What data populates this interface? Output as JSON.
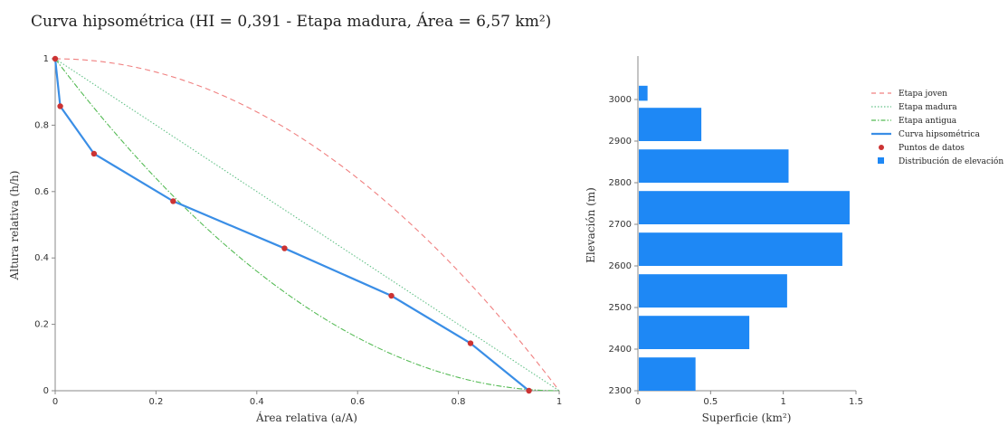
{
  "title": "Curva hipsométrica (HI = 0,391 - Etapa madura, Área = 6,57 km²)",
  "colors": {
    "joven": "#f08080",
    "madura": "#66c28a",
    "antigua": "#55bb55",
    "curva": "#3a8ee6",
    "puntos": "#cc3333",
    "barras": "#1e88f5"
  },
  "chart_data": [
    {
      "type": "line",
      "xlabel": "Área relativa (a/A)",
      "ylabel": "Altura relativa (h/h)",
      "xlim": [
        0,
        1
      ],
      "ylim": [
        0,
        1
      ],
      "xticks": [
        "0",
        "0.2",
        "0.4",
        "0.6",
        "0.8",
        "1"
      ],
      "yticks": [
        "0",
        "0.2",
        "0.4",
        "0.6",
        "0.8",
        "1"
      ],
      "grid": false,
      "series": [
        {
          "name": "Etapa joven",
          "style": "dashed",
          "x": [
            0,
            0.1,
            0.2,
            0.3,
            0.4,
            0.5,
            0.6,
            0.7,
            0.8,
            0.9,
            1
          ],
          "y": [
            1,
            0.99,
            0.96,
            0.91,
            0.84,
            0.75,
            0.64,
            0.51,
            0.36,
            0.19,
            0
          ]
        },
        {
          "name": "Etapa madura",
          "style": "dotted",
          "x": [
            0,
            1
          ],
          "y": [
            1,
            0
          ]
        },
        {
          "name": "Etapa antigua",
          "style": "dashdot",
          "x": [
            0,
            0.1,
            0.2,
            0.3,
            0.4,
            0.5,
            0.6,
            0.7,
            0.8,
            0.9,
            1
          ],
          "y": [
            1,
            0.81,
            0.64,
            0.49,
            0.36,
            0.25,
            0.16,
            0.09,
            0.04,
            0.01,
            0
          ]
        },
        {
          "name": "Curva hipsométrica",
          "style": "solid",
          "x": [
            0,
            0.01,
            0.077,
            0.234,
            0.455,
            0.667,
            0.824,
            0.94
          ],
          "y": [
            1,
            0.857,
            0.714,
            0.571,
            0.429,
            0.286,
            0.143,
            0
          ]
        }
      ],
      "points": {
        "name": "Puntos de datos",
        "x": [
          0,
          0.01,
          0.077,
          0.234,
          0.455,
          0.667,
          0.824,
          0.94
        ],
        "y": [
          1,
          0.857,
          0.714,
          0.571,
          0.429,
          0.286,
          0.143,
          0
        ]
      }
    },
    {
      "type": "bar",
      "orientation": "horizontal",
      "xlabel": "Superficie (km²)",
      "ylabel": "Elevación (m)",
      "xlim": [
        0,
        1.5
      ],
      "ylim": [
        2300,
        3030
      ],
      "xticks": [
        "0",
        "0.5",
        "1",
        "1.5"
      ],
      "yticks": [
        "2300",
        "2400",
        "2500",
        "2600",
        "2700",
        "2800",
        "2900",
        "3000"
      ],
      "series_name": "Distribución de elevación",
      "bins": [
        {
          "center": 2340,
          "value": 0.39
        },
        {
          "center": 2440,
          "value": 0.76
        },
        {
          "center": 2540,
          "value": 1.02
        },
        {
          "center": 2640,
          "value": 1.4
        },
        {
          "center": 2740,
          "value": 1.45
        },
        {
          "center": 2840,
          "value": 1.03
        },
        {
          "center": 2940,
          "value": 0.43
        },
        {
          "center": 3015,
          "value": 0.06
        }
      ]
    }
  ],
  "legend": {
    "placement": "top-right",
    "items": [
      "Etapa joven",
      "Etapa madura",
      "Etapa antigua",
      "Curva hipsométrica",
      "Puntos de datos",
      "Distribución de elevación"
    ]
  }
}
